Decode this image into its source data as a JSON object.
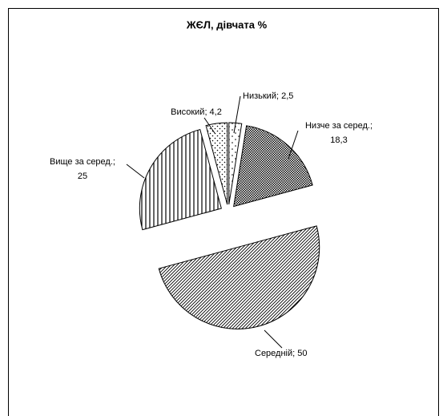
{
  "chart_data": {
    "type": "pie",
    "title": "ЖЄЛ, дівчата %",
    "categories": [
      "Низький",
      "Низче за серед.",
      "Середній",
      "Вище за серед.",
      "Високий"
    ],
    "values": [
      2.5,
      18.3,
      50,
      25,
      4.2
    ],
    "value_labels": [
      "Низький; 2,5",
      "Низче за серед.; 18,3",
      "Середній; 50",
      "Вище за серед.; 25",
      "Високий; 4,2"
    ]
  }
}
